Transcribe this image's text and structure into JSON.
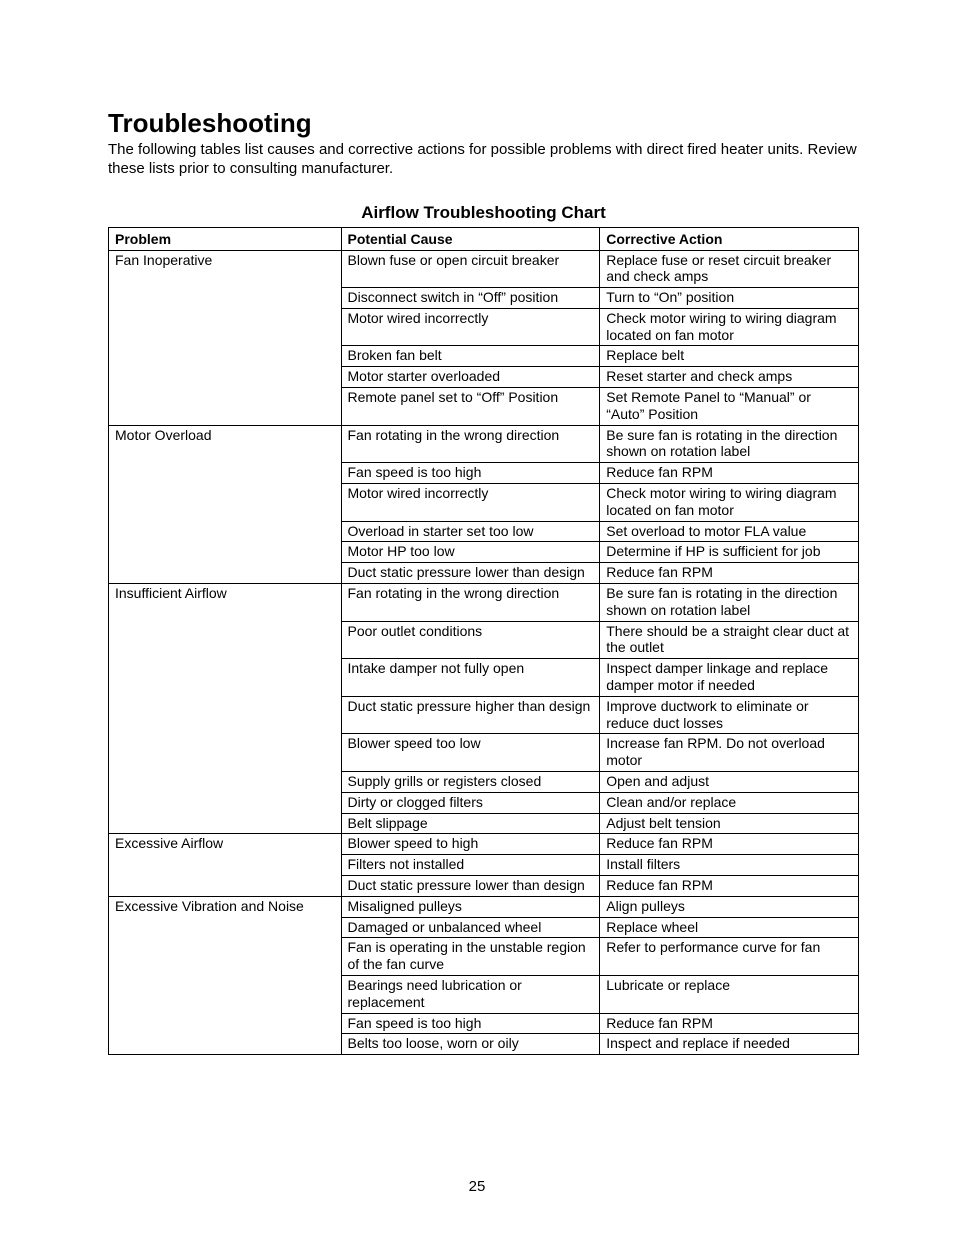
{
  "heading": "Troubleshooting",
  "intro": "The following tables list causes and corrective actions for possible problems with direct fired heater units. Review these lists prior to consulting manufacturer.",
  "table_title": "Airflow Troubleshooting Chart",
  "columns": [
    "Problem",
    "Potential Cause",
    "Corrective Action"
  ],
  "groups": [
    {
      "problem": "Fan Inoperative",
      "rows": [
        {
          "cause": "Blown fuse or open circuit breaker",
          "action": "Replace fuse or reset circuit breaker and check amps"
        },
        {
          "cause": "Disconnect switch in “Off” position",
          "action": "Turn to “On” position"
        },
        {
          "cause": "Motor wired incorrectly",
          "action": "Check motor wiring to wiring diagram located on fan motor"
        },
        {
          "cause": "Broken fan belt",
          "action": "Replace belt"
        },
        {
          "cause": "Motor starter overloaded",
          "action": "Reset starter and check amps"
        },
        {
          "cause": "Remote panel set to “Off” Position",
          "action": "Set Remote Panel to “Manual” or “Auto” Position"
        }
      ]
    },
    {
      "problem": "Motor Overload",
      "rows": [
        {
          "cause": "Fan rotating in the wrong direction",
          "action": "Be sure fan is rotating in the direction shown on rotation label"
        },
        {
          "cause": "Fan speed is too high",
          "action": "Reduce fan RPM"
        },
        {
          "cause": "Motor wired incorrectly",
          "action": "Check motor wiring to wiring diagram located on fan motor"
        },
        {
          "cause": "Overload in starter set too low",
          "action": "Set overload to motor FLA value"
        },
        {
          "cause": "Motor HP too low",
          "action": "Determine if HP is sufficient for job"
        },
        {
          "cause": "Duct static pressure lower than design",
          "action": "Reduce fan RPM"
        }
      ]
    },
    {
      "problem": "Insufficient Airflow",
      "rows": [
        {
          "cause": "Fan rotating in the wrong direction",
          "action": "Be sure fan is rotating in the direction shown on rotation label"
        },
        {
          "cause": "Poor outlet conditions",
          "action": "There should be a straight clear duct at the outlet"
        },
        {
          "cause": "Intake damper not fully open",
          "action": "Inspect damper linkage and replace damper motor if needed"
        },
        {
          "cause": "Duct static pressure higher than design",
          "action": "Improve ductwork to eliminate or reduce duct losses"
        },
        {
          "cause": "Blower speed too low",
          "action": "Increase fan RPM.  Do not overload motor"
        },
        {
          "cause": "Supply grills or registers closed",
          "action": "Open and adjust"
        },
        {
          "cause": "Dirty or clogged filters",
          "action": "Clean and/or replace"
        },
        {
          "cause": "Belt slippage",
          "action": "Adjust belt tension"
        }
      ]
    },
    {
      "problem": "Excessive Airflow",
      "rows": [
        {
          "cause": "Blower speed to high",
          "action": "Reduce fan RPM"
        },
        {
          "cause": "Filters not installed",
          "action": "Install filters"
        },
        {
          "cause": "Duct static pressure lower than design",
          "action": "Reduce fan RPM"
        }
      ]
    },
    {
      "problem": "Excessive Vibration and Noise",
      "rows": [
        {
          "cause": "Misaligned pulleys",
          "action": "Align pulleys"
        },
        {
          "cause": "Damaged or unbalanced wheel",
          "action": "Replace wheel"
        },
        {
          "cause": "Fan is operating in the unstable region of the fan curve",
          "action": "Refer to performance curve for fan"
        },
        {
          "cause": "Bearings need lubrication or replacement",
          "action": "Lubricate or replace"
        },
        {
          "cause": "Fan speed is too high",
          "action": "Reduce fan RPM"
        },
        {
          "cause": "Belts too loose, worn or oily",
          "action": "Inspect and replace if needed"
        }
      ]
    }
  ],
  "page_number": "25",
  "style": {
    "background_color": "#ffffff",
    "text_color": "#000000",
    "border_color": "#000000",
    "heading_fontsize": 26,
    "table_title_fontsize": 17,
    "body_fontsize": 15,
    "cell_fontsize": 14,
    "col_widths_pct": [
      31,
      34.5,
      34.5
    ]
  }
}
